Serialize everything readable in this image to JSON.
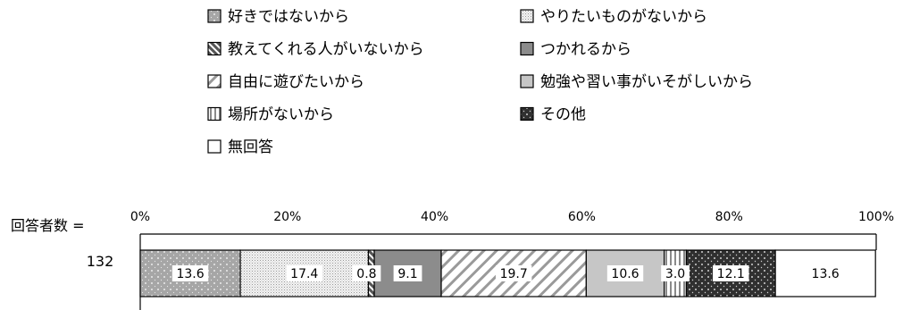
{
  "chart_data": {
    "type": "bar",
    "orientation": "horizontal-stacked-100",
    "respondents_label": "回答者数 =",
    "categories": [
      "132"
    ],
    "series": [
      {
        "name": "好きではないから",
        "values": [
          13.6
        ],
        "pattern": "dots-gray"
      },
      {
        "name": "やりたいものがないから",
        "values": [
          17.4
        ],
        "pattern": "dense-dots"
      },
      {
        "name": "教えてくれる人がいないから",
        "values": [
          0.8
        ],
        "pattern": "diag-hatch-dark"
      },
      {
        "name": "つかれるから",
        "values": [
          9.1
        ],
        "pattern": "solid-gray"
      },
      {
        "name": "自由に遊びたいから",
        "values": [
          19.7
        ],
        "pattern": "diag-stripes"
      },
      {
        "name": "勉強や習い事がいそがしいから",
        "values": [
          10.6
        ],
        "pattern": "light-gray"
      },
      {
        "name": "場所がないから",
        "values": [
          3.0
        ],
        "pattern": "vertical-stripes"
      },
      {
        "name": "その他",
        "values": [
          12.1
        ],
        "pattern": "dark-dots"
      },
      {
        "name": "無回答",
        "values": [
          13.6
        ],
        "pattern": "white"
      }
    ],
    "data_labels": [
      "13.6",
      "17.4",
      "0.8",
      "9.1",
      "19.7",
      "10.6",
      "3.0",
      "12.1",
      "13.6"
    ],
    "xlim": [
      0,
      100
    ],
    "ticks": [
      "0%",
      "20%",
      "40%",
      "60%",
      "80%",
      "100%"
    ],
    "legend_position": "top",
    "colors": {
      "dots-gray": "#a6a6a6",
      "dense-dots": "#e6e6e6",
      "diag-hatch-dark": "#7a7a7a",
      "solid-gray": "#8c8c8c",
      "diag-stripes": "#c8c8c8",
      "light-gray": "#c6c6c6",
      "vertical-stripes": "#8a8a8a",
      "dark-dots": "#333333",
      "white": "#ffffff"
    }
  }
}
